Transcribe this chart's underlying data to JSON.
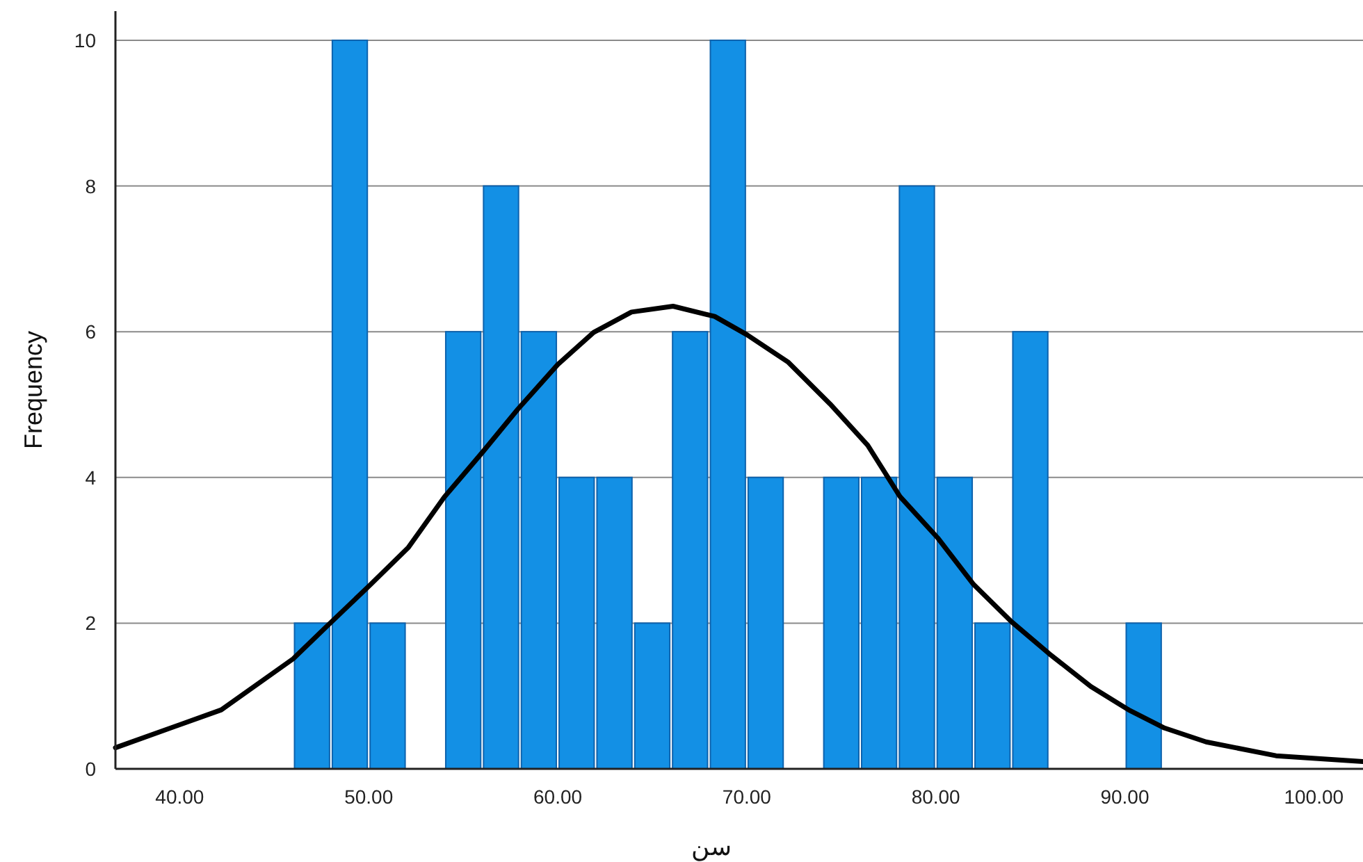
{
  "chart_data": {
    "type": "histogram",
    "xlabel": "سن",
    "ylabel": "Frequency",
    "bins": [
      46,
      48,
      50,
      52,
      54,
      56,
      58,
      60,
      62,
      64,
      66,
      68,
      70,
      72,
      74,
      76,
      78,
      80,
      82,
      84,
      86,
      88,
      90,
      92
    ],
    "values": [
      2,
      10,
      2,
      0,
      6,
      8,
      6,
      4,
      4,
      2,
      6,
      10,
      4,
      0,
      4,
      4,
      8,
      4,
      2,
      6,
      0,
      0,
      2
    ],
    "color": "#1390e5",
    "series": [
      {
        "type": "line",
        "color": "#000000",
        "x": [
          36.6,
          42.2,
          46.0,
          47.8,
          50.1,
          52.1,
          54.0,
          56.0,
          57.9,
          60.0,
          61.9,
          63.9,
          66.1,
          68.3,
          70.0,
          72.2,
          74.4,
          76.4,
          78.1,
          80.1,
          82.0,
          84.0,
          86.0,
          88.2,
          90.2,
          92.1,
          94.3,
          98.0,
          102.6
        ],
        "values": [
          0.29,
          0.81,
          1.51,
          1.96,
          2.53,
          3.04,
          3.73,
          4.34,
          4.94,
          5.55,
          5.99,
          6.27,
          6.35,
          6.21,
          5.96,
          5.58,
          5.01,
          4.44,
          3.74,
          3.17,
          2.53,
          2.02,
          1.58,
          1.13,
          0.81,
          0.56,
          0.37,
          0.18,
          0.1
        ]
      }
    ],
    "xlim": [
      36.6,
      102.6
    ],
    "ylim": [
      0,
      10.4
    ],
    "xticks": [
      {
        "value": 40,
        "label": "40.00"
      },
      {
        "value": 50,
        "label": "50.00"
      },
      {
        "value": 60,
        "label": "60.00"
      },
      {
        "value": 70,
        "label": "70.00"
      },
      {
        "value": 80,
        "label": "80.00"
      },
      {
        "value": 90,
        "label": "90.00"
      },
      {
        "value": 100,
        "label": "100.00"
      }
    ],
    "yticks": [
      0,
      2,
      4,
      6,
      8,
      10
    ],
    "grid": "y"
  }
}
